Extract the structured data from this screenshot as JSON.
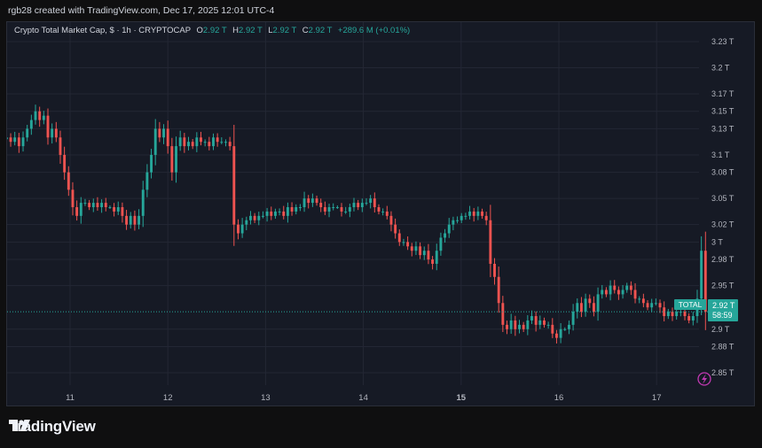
{
  "attribution": "rgb28 created with TradingView.com, Dec 17, 2025 12:01 UTC-4",
  "legend": {
    "name": "Crypto Total Market Cap, $ · 1h · CRYPTOCAP",
    "o_label": "O",
    "o": "2.92 T",
    "h_label": "H",
    "h": "2.92 T",
    "l_label": "L",
    "l": "2.92 T",
    "c_label": "C",
    "c": "2.92 T",
    "change": "+289.6 M (+0.01%)"
  },
  "price_tag": {
    "label": "TOTAL",
    "price": "2.92 T",
    "countdown": "58:59"
  },
  "brand": "TradingView",
  "colors": {
    "up": "#26a69a",
    "down": "#ef5350",
    "background": "#161a25",
    "grid": "#232734"
  },
  "icons": {
    "brand": "tradingview-logo-icon",
    "alert": "lightning-icon"
  },
  "chart_data": {
    "type": "candlestick",
    "y_unit": "T",
    "ylim": [
      2.83,
      3.25
    ],
    "y_ticks": [
      {
        "value": 3.23,
        "label": "3.23 T"
      },
      {
        "value": 3.2,
        "label": "3.2 T"
      },
      {
        "value": 3.17,
        "label": "3.17 T"
      },
      {
        "value": 3.15,
        "label": "3.15 T"
      },
      {
        "value": 3.13,
        "label": "3.13 T"
      },
      {
        "value": 3.1,
        "label": "3.1 T"
      },
      {
        "value": 3.08,
        "label": "3.08 T"
      },
      {
        "value": 3.05,
        "label": "3.05 T"
      },
      {
        "value": 3.02,
        "label": "3.02 T"
      },
      {
        "value": 3.0,
        "label": "3 T"
      },
      {
        "value": 2.98,
        "label": "2.98 T"
      },
      {
        "value": 2.95,
        "label": "2.95 T"
      },
      {
        "value": 2.9,
        "label": "2.9 T"
      },
      {
        "value": 2.88,
        "label": "2.88 T"
      },
      {
        "value": 2.85,
        "label": "2.85 T"
      }
    ],
    "x_ticks": [
      {
        "day": 11,
        "label": "11"
      },
      {
        "day": 12,
        "label": "12"
      },
      {
        "day": 13,
        "label": "13"
      },
      {
        "day": 14,
        "label": "14"
      },
      {
        "day": 15,
        "label": "15",
        "bold": true
      },
      {
        "day": 16,
        "label": "16"
      },
      {
        "day": 17,
        "label": "17"
      }
    ],
    "x_start_day": 10.35,
    "last_price": 2.92,
    "closes": [
      3.12,
      3.115,
      3.12,
      3.11,
      3.12,
      3.13,
      3.14,
      3.15,
      3.14,
      3.145,
      3.12,
      3.13,
      3.12,
      3.1,
      3.08,
      3.06,
      3.04,
      3.03,
      3.045,
      3.045,
      3.04,
      3.045,
      3.04,
      3.045,
      3.04,
      3.04,
      3.035,
      3.04,
      3.03,
      3.02,
      3.03,
      3.02,
      3.03,
      3.06,
      3.08,
      3.1,
      3.13,
      3.12,
      3.13,
      3.11,
      3.08,
      3.11,
      3.12,
      3.11,
      3.115,
      3.11,
      3.12,
      3.115,
      3.115,
      3.11,
      3.12,
      3.115,
      3.115,
      3.115,
      3.11,
      3.02,
      3.01,
      3.02,
      3.025,
      3.03,
      3.025,
      3.03,
      3.03,
      3.035,
      3.03,
      3.035,
      3.035,
      3.03,
      3.04,
      3.035,
      3.04,
      3.04,
      3.05,
      3.045,
      3.05,
      3.045,
      3.04,
      3.035,
      3.04,
      3.04,
      3.04,
      3.035,
      3.035,
      3.04,
      3.045,
      3.04,
      3.045,
      3.045,
      3.05,
      3.04,
      3.035,
      3.035,
      3.03,
      3.02,
      3.01,
      3.0,
      3.0,
      2.995,
      2.99,
      2.995,
      2.985,
      2.99,
      2.98,
      2.975,
      2.99,
      3.005,
      3.01,
      3.02,
      3.025,
      3.025,
      3.03,
      3.03,
      3.035,
      3.03,
      3.035,
      3.03,
      3.025,
      2.975,
      2.96,
      2.93,
      2.905,
      2.9,
      2.91,
      2.9,
      2.905,
      2.9,
      2.91,
      2.915,
      2.905,
      2.91,
      2.905,
      2.905,
      2.895,
      2.89,
      2.9,
      2.9,
      2.905,
      2.92,
      2.93,
      2.92,
      2.935,
      2.93,
      2.92,
      2.94,
      2.945,
      2.94,
      2.95,
      2.945,
      2.94,
      2.945,
      2.95,
      2.945,
      2.935,
      2.935,
      2.93,
      2.925,
      2.93,
      2.93,
      2.925,
      2.915,
      2.92,
      2.915,
      2.92,
      2.92,
      2.915,
      2.91,
      2.915,
      2.935,
      2.99,
      2.92
    ]
  }
}
